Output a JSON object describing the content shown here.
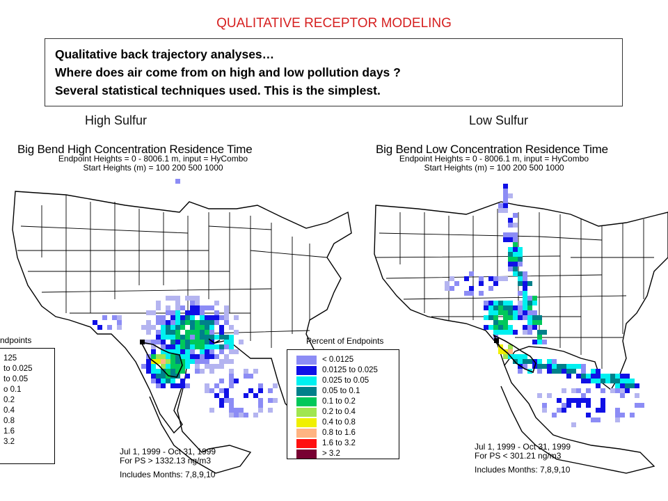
{
  "slide": {
    "title": "QUALITATIVE RECEPTOR MODELING",
    "lines": [
      "Qualitative back trajectory analyses…",
      "Where does air come from on high and low pollution days ?",
      "Several statistical techniques used. This is the simplest."
    ]
  },
  "headers": {
    "left": "High Sulfur",
    "right": "Low Sulfur"
  },
  "colors": {
    "title": "#d62020",
    "bins": [
      "#b4b4f0",
      "#8c8cf5",
      "#1010e6",
      "#00f0f0",
      "#00808a",
      "#00c85a",
      "#a0e650",
      "#f0f000",
      "#ffb482",
      "#ff1010",
      "#780032"
    ]
  },
  "maps": [
    {
      "title": "Big Bend High Concentration Residence Time",
      "sub1": "Endpoint Heights = 0 - 8006.1 m, input = HyCombo",
      "sub2": "Start Heights (m) = 100 200 500 1000",
      "legend_title": "ndpoints",
      "legend_items": [
        "125",
        "to 0.025",
        "to 0.05",
        "o 0.1",
        "0.2",
        "0.4",
        "0.8",
        "1.6",
        "3.2"
      ],
      "foot1": "Jul 1, 1999 - Oct 31, 1999",
      "foot2": "For PS > 1332.13 ng/m3",
      "foot3": "Includes Months: 7,8,9,10"
    },
    {
      "title": "Big Bend Low Concentration Residence Time",
      "sub1": "Endpoint Heights = 0 - 8006.1 m, input = HyCombo",
      "sub2": "Start Heights (m) = 100 200 500 1000",
      "legend_title": "Percent of Endpoints",
      "legend_items": [
        "< 0.0125",
        "0.0125 to 0.025",
        "0.025 to 0.05",
        "0.05 to 0.1",
        "0.1 to 0.2",
        "0.2 to 0.4",
        "0.4 to 0.8",
        "0.8 to 1.6",
        "1.6 to 3.2",
        "> 3.2"
      ],
      "foot1": "Jul 1, 1999 - Oct 31, 1999",
      "foot2": "For PS < 301.21 ng/m3",
      "foot3": "Includes Months: 7,8,9,10"
    }
  ]
}
